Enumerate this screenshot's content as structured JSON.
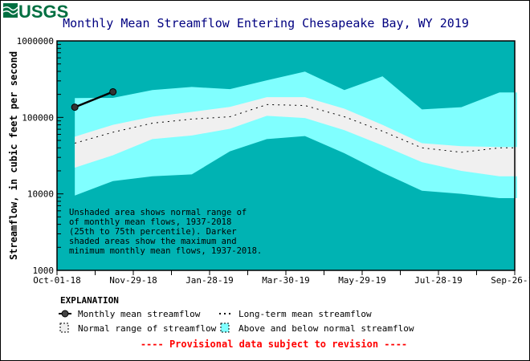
{
  "logo": "USGS",
  "chart_data": {
    "type": "area",
    "title": "Monthly Mean Streamflow Entering Chesapeake Bay, WY 2019",
    "ylabel": "Streamflow, in cubic feet per second",
    "xlabel": "",
    "yscale": "log",
    "ylim": [
      1000,
      1000000
    ],
    "yticks": [
      "1000",
      "10000",
      "100000",
      "1000000"
    ],
    "xlim": [
      "2018-10-01",
      "2019-09-26"
    ],
    "xticks": [
      "Oct-01-18",
      "Nov-29-18",
      "Jan-28-19",
      "Mar-30-19",
      "May-29-19",
      "Jul-28-19",
      "Sep-26-19"
    ],
    "months": [
      "2018-10-15",
      "2018-11-14",
      "2018-12-15",
      "2019-01-15",
      "2019-02-14",
      "2019-03-15",
      "2019-04-14",
      "2019-05-15",
      "2019-06-14",
      "2019-07-15",
      "2019-08-15",
      "2019-09-14"
    ],
    "max": [
      179000,
      180000,
      228000,
      250000,
      234000,
      305000,
      397000,
      228000,
      344000,
      127000,
      136000,
      212000
    ],
    "p75": [
      56000,
      80000,
      102000,
      118000,
      137000,
      184000,
      184000,
      130000,
      80000,
      46000,
      42000,
      41000
    ],
    "mean": [
      46000,
      64000,
      84000,
      95000,
      102000,
      147000,
      143000,
      102000,
      66000,
      40000,
      35000,
      40000
    ],
    "p25": [
      22000,
      32000,
      52000,
      58000,
      71000,
      105000,
      98000,
      68000,
      43000,
      26000,
      20000,
      17000
    ],
    "min": [
      9500,
      14700,
      17000,
      18000,
      36000,
      52000,
      57000,
      34000,
      19000,
      11000,
      10000,
      8800
    ],
    "monthly_mean": {
      "dates": [
        "2018-10-15",
        "2018-11-14"
      ],
      "values": [
        136000,
        216000
      ]
    },
    "annotation": [
      "Unshaded area shows normal range of",
      "of monthly mean flows, 1937-2018",
      "(25th to 75th percentile).  Darker",
      "shaded areas show the maximum and",
      "minimum monthly mean flows, 1937-2018."
    ],
    "colors": {
      "outer": "#00b3b3",
      "extreme": "#80ffff",
      "normal": "#f0f0f0",
      "title": "#000080",
      "provisional": "#ff0000",
      "logo": "#006f41"
    }
  },
  "legend": {
    "heading": "EXPLANATION",
    "items": [
      "Monthly mean streamflow",
      "Long-term mean streamflow",
      "Normal range of streamflow",
      "Above and below normal streamflow"
    ],
    "provisional": "---- Provisional data subject to revision ----"
  }
}
